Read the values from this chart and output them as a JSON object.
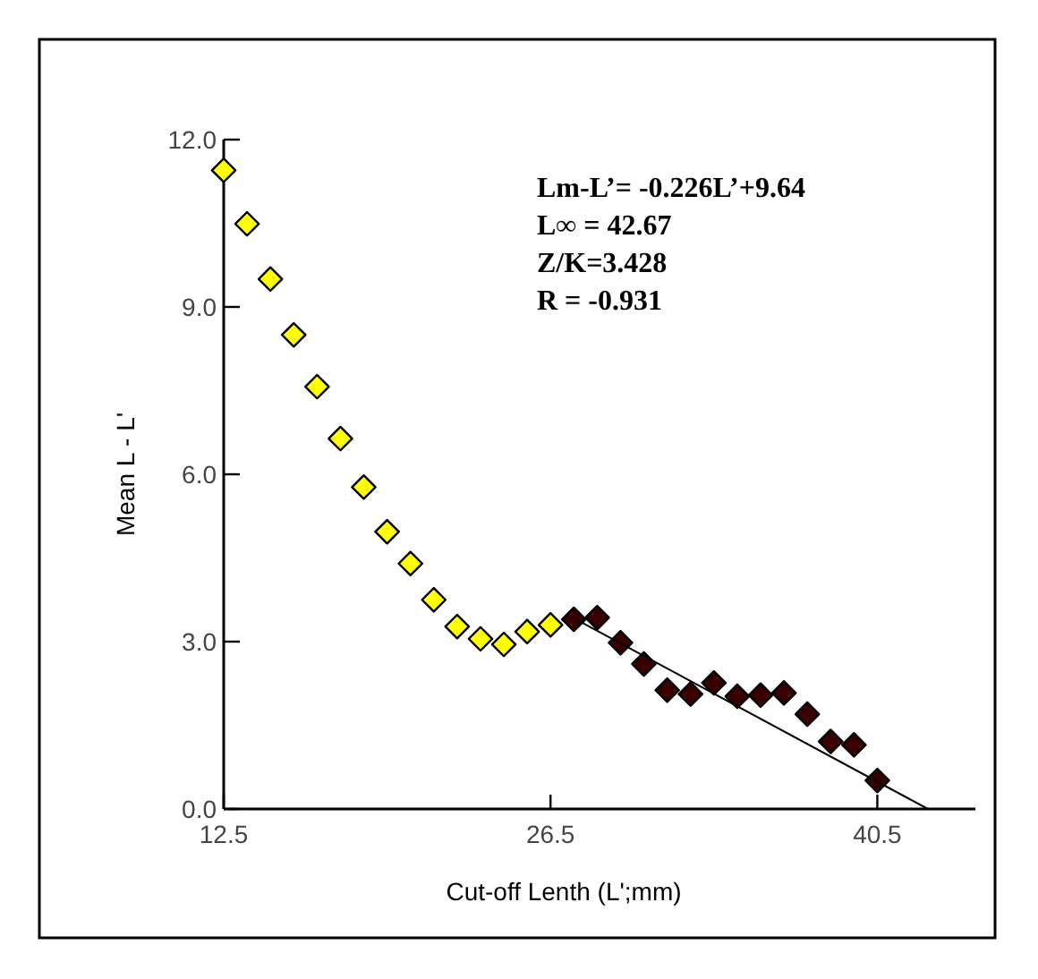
{
  "chart_data": {
    "type": "scatter",
    "xlabel": "Cut-off Lenth (L';mm)",
    "ylabel": "Mean L - L'",
    "annotations": [
      "Lm-L’= -0.226L’+9.64",
      "L∞ = 42.67",
      "Z/K=3.428",
      "R = -0.931"
    ],
    "series": [
      {
        "color": "#ffff00",
        "x": [
          12.5,
          13.5,
          14.5,
          15.5,
          16.5,
          17.5,
          18.5,
          19.5,
          20.5,
          21.5,
          22.5,
          23.5,
          24.5,
          25.5,
          26.5
        ],
        "values": [
          11.45,
          10.49,
          9.5,
          8.5,
          7.57,
          6.64,
          5.77,
          4.97,
          4.4,
          3.75,
          3.27,
          3.05,
          2.95,
          3.18,
          3.3
        ]
      },
      {
        "color": "#3a0000",
        "x": [
          27.5,
          28.5,
          29.5,
          30.5,
          31.5,
          32.5,
          33.5,
          34.5,
          35.5,
          36.5,
          37.5,
          38.5,
          39.5,
          40.5
        ],
        "values": [
          3.4,
          3.43,
          2.98,
          2.6,
          2.13,
          2.06,
          2.26,
          2.02,
          2.04,
          2.08,
          1.7,
          1.21,
          1.15,
          0.51
        ]
      },
      {
        "type": "line",
        "color": "#000000",
        "marker": "none",
        "x": [
          27.5,
          42.67
        ],
        "values": [
          3.42,
          0.0
        ]
      }
    ],
    "xlim": [
      12.5,
      44.7
    ],
    "ylim": [
      0,
      12
    ],
    "xticks": [
      12.5,
      26.5,
      40.5
    ],
    "yticks": [
      {
        "value": 0,
        "label": "0.0"
      },
      {
        "value": 3,
        "label": "3.0"
      },
      {
        "value": 6,
        "label": "6.0"
      },
      {
        "value": 9,
        "label": "9.0"
      },
      {
        "value": 12,
        "label": "12.0"
      }
    ],
    "marker": "diamond",
    "grid": false
  }
}
